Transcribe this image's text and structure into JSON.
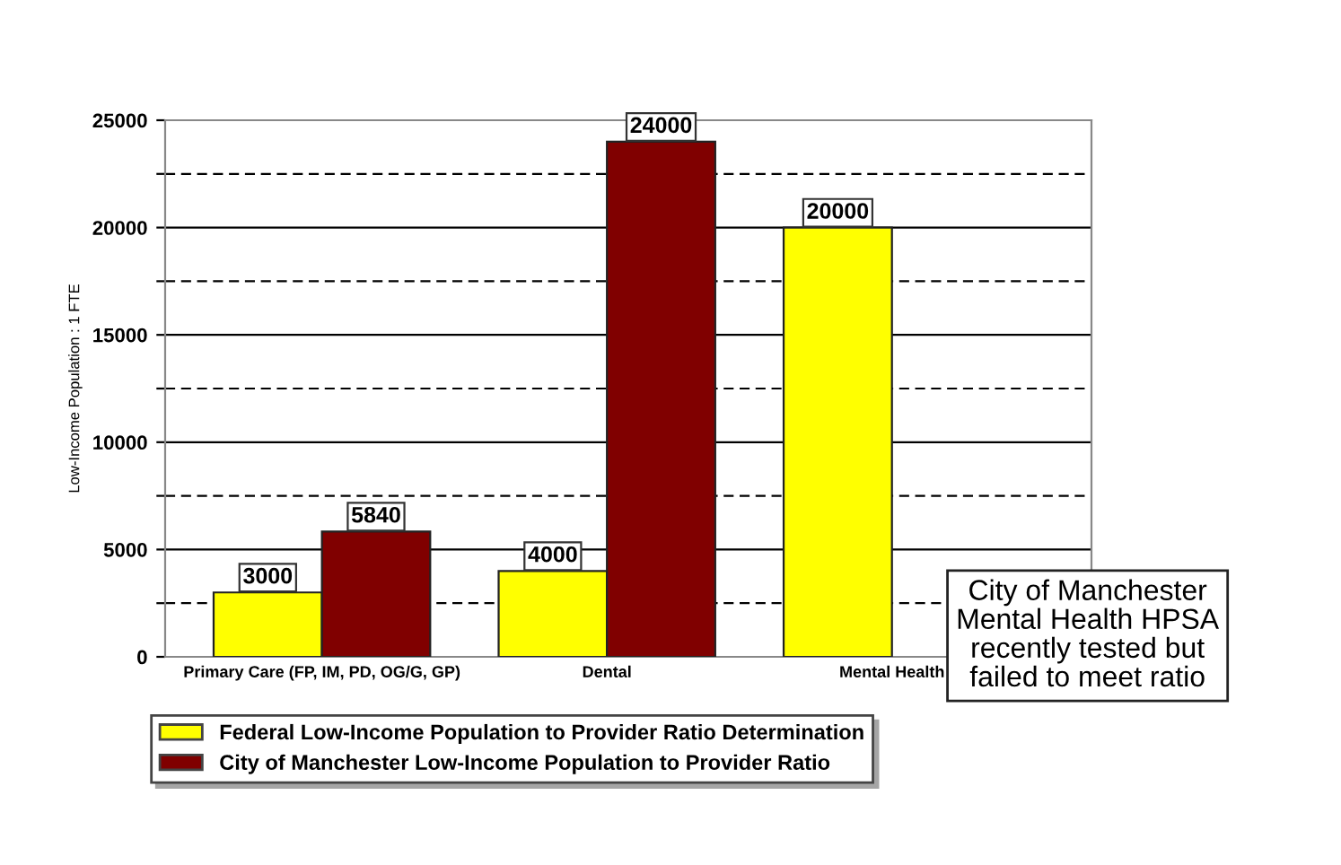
{
  "chart_data": {
    "type": "bar",
    "categories": [
      "Primary Care (FP, IM, PD, OG/G, GP)",
      "Dental",
      "Mental Health"
    ],
    "series": [
      {
        "name": "Federal Low-Income Population to Provider Ratio Determination",
        "color": "#ffff00",
        "values": [
          3000,
          4000,
          20000
        ]
      },
      {
        "name": "City of Manchester Low-Income Population to Provider Ratio",
        "color": "#800000",
        "values": [
          5840,
          24000,
          null
        ]
      }
    ],
    "ylabel": "Low-Income Population : 1 FTE",
    "ylim": [
      0,
      25000
    ],
    "yticks": [
      0,
      {
        "value": 2500,
        "label": null
      },
      5000,
      {
        "value": 7500,
        "label": null
      },
      10000,
      {
        "value": 12500,
        "label": null
      },
      15000,
      {
        "value": 17500,
        "label": null
      },
      20000,
      {
        "value": 22500,
        "label": null
      },
      25000
    ],
    "grid": "y",
    "data_labels": true,
    "legend": "bottom",
    "annotations": [
      "City of Manchester\nMental Health HPSA\nrecently tested but\nfailed to meet ratio"
    ]
  }
}
